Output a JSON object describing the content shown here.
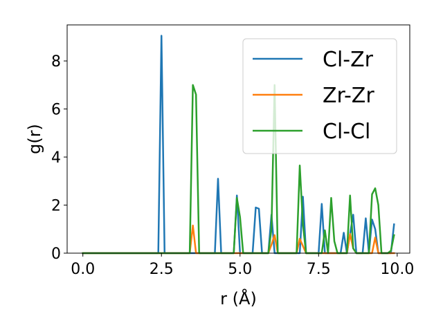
{
  "chart_data": {
    "type": "line",
    "xlabel": "r (Å)",
    "ylabel": "g(r)",
    "xlim": [
      -0.5,
      10.4
    ],
    "ylim": [
      0,
      9.5
    ],
    "x_ticks": [
      {
        "value": 0.0,
        "label": "0.0"
      },
      {
        "value": 2.5,
        "label": "2.5"
      },
      {
        "value": 5.0,
        "label": "5.0"
      },
      {
        "value": 7.5,
        "label": "7.5"
      },
      {
        "value": 10.0,
        "label": "10.0"
      }
    ],
    "y_ticks": [
      {
        "value": 0,
        "label": "0"
      },
      {
        "value": 2,
        "label": "2"
      },
      {
        "value": 4,
        "label": "4"
      },
      {
        "value": 6,
        "label": "6"
      },
      {
        "value": 8,
        "label": "8"
      }
    ],
    "legend_position": "top-right",
    "series": [
      {
        "name": "Cl-Zr",
        "color": "#1f77b4",
        "points": [
          [
            0,
            0
          ],
          [
            2.4,
            0
          ],
          [
            2.5,
            9.05
          ],
          [
            2.6,
            0
          ],
          [
            4.2,
            0
          ],
          [
            4.3,
            3.1
          ],
          [
            4.4,
            0
          ],
          [
            4.8,
            0
          ],
          [
            4.9,
            2.4
          ],
          [
            5.0,
            0
          ],
          [
            5.4,
            0
          ],
          [
            5.5,
            1.9
          ],
          [
            5.6,
            1.85
          ],
          [
            5.7,
            0
          ],
          [
            5.9,
            0
          ],
          [
            6.0,
            1.6
          ],
          [
            6.1,
            0
          ],
          [
            6.9,
            0
          ],
          [
            7.0,
            2.35
          ],
          [
            7.1,
            0
          ],
          [
            7.5,
            0
          ],
          [
            7.6,
            2.05
          ],
          [
            7.7,
            0
          ],
          [
            8.2,
            0
          ],
          [
            8.3,
            0.85
          ],
          [
            8.4,
            0
          ],
          [
            8.5,
            0.8
          ],
          [
            8.6,
            1.6
          ],
          [
            8.7,
            0
          ],
          [
            8.9,
            0
          ],
          [
            9.0,
            1.45
          ],
          [
            9.1,
            0
          ],
          [
            9.2,
            1.4
          ],
          [
            9.3,
            1.0
          ],
          [
            9.4,
            0
          ],
          [
            9.8,
            0
          ],
          [
            9.9,
            1.2
          ]
        ]
      },
      {
        "name": "Zr-Zr",
        "color": "#ff7f0e",
        "points": [
          [
            0,
            0
          ],
          [
            3.4,
            0
          ],
          [
            3.5,
            1.15
          ],
          [
            3.6,
            0
          ],
          [
            5.9,
            0
          ],
          [
            6.0,
            0.35
          ],
          [
            6.1,
            0.75
          ],
          [
            6.2,
            0
          ],
          [
            6.8,
            0
          ],
          [
            6.9,
            0.6
          ],
          [
            7.0,
            0.3
          ],
          [
            7.1,
            0
          ],
          [
            8.4,
            0
          ],
          [
            8.5,
            0.8
          ],
          [
            8.6,
            0.2
          ],
          [
            8.7,
            0
          ],
          [
            9.2,
            0
          ],
          [
            9.3,
            0.65
          ],
          [
            9.4,
            0
          ],
          [
            9.9,
            0
          ]
        ]
      },
      {
        "name": "Cl-Cl",
        "color": "#2ca02c",
        "points": [
          [
            0,
            0
          ],
          [
            3.4,
            0
          ],
          [
            3.5,
            7.0
          ],
          [
            3.6,
            6.6
          ],
          [
            3.7,
            0
          ],
          [
            4.8,
            0
          ],
          [
            4.9,
            2.3
          ],
          [
            5.0,
            1.5
          ],
          [
            5.1,
            0
          ],
          [
            5.9,
            0
          ],
          [
            6.0,
            1.0
          ],
          [
            6.1,
            7.0
          ],
          [
            6.2,
            0
          ],
          [
            6.8,
            0
          ],
          [
            6.9,
            3.65
          ],
          [
            7.0,
            1.2
          ],
          [
            7.1,
            0
          ],
          [
            7.6,
            0
          ],
          [
            7.7,
            0.95
          ],
          [
            7.8,
            0
          ],
          [
            7.9,
            2.3
          ],
          [
            8.0,
            0.5
          ],
          [
            8.1,
            0
          ],
          [
            8.4,
            0
          ],
          [
            8.5,
            2.4
          ],
          [
            8.6,
            0.2
          ],
          [
            8.7,
            0
          ],
          [
            9.1,
            0
          ],
          [
            9.2,
            2.45
          ],
          [
            9.3,
            2.7
          ],
          [
            9.4,
            2.0
          ],
          [
            9.5,
            0
          ],
          [
            9.7,
            0
          ],
          [
            9.8,
            0.1
          ],
          [
            9.9,
            0.75
          ]
        ]
      }
    ]
  }
}
